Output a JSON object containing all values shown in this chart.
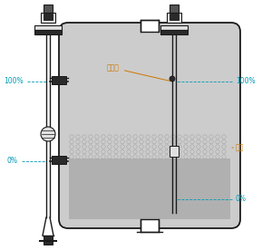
{
  "bg": "#ffffff",
  "lc": "#1a1a1a",
  "tank_fill": "#cccccc",
  "liquid_fill": "#b0b0b0",
  "foam_dot_edge": "#999999",
  "foam_dot_face": "#cccccc",
  "sensor_dark": "#2a2a2a",
  "sensor_mid": "#555555",
  "sensor_light": "#e0e0e0",
  "cyan": "#009bb5",
  "orange": "#cc7700",
  "label_100L": "100%",
  "label_0L": "0%",
  "label_100R": "100%",
  "label_0R": "0%",
  "label_dianya": "调压孔",
  "label_yemian": "液面"
}
